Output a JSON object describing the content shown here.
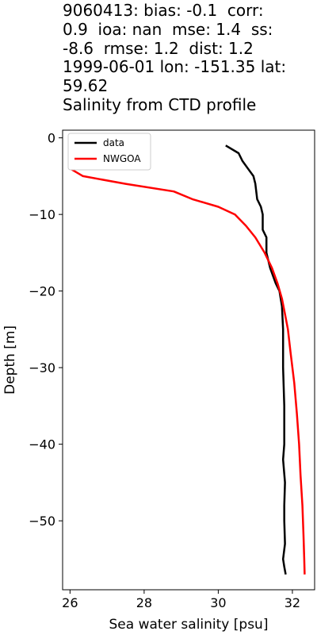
{
  "chart_data": {
    "type": "line",
    "title_lines": [
      "9060413: bias: -0.1  corr:",
      "0.9  ioa: nan  mse: 1.4  ss:",
      "-8.6  rmse: 1.2  dist: 1.2",
      "1999-06-01 lon: -151.35 lat:",
      "59.62",
      "Salinity from CTD profile"
    ],
    "xlabel": "Sea water salinity [psu]",
    "ylabel": "Depth [m]",
    "xlim": [
      25.8,
      32.6
    ],
    "ylim": [
      -59,
      1
    ],
    "xticks": [
      26,
      28,
      30,
      32
    ],
    "yticks": [
      0,
      -10,
      -20,
      -30,
      -40,
      -50
    ],
    "grid": false,
    "legend_position": "top-left",
    "series": [
      {
        "name": "data",
        "color": "#000000",
        "points": [
          [
            30.2,
            -1
          ],
          [
            30.55,
            -2
          ],
          [
            30.65,
            -3
          ],
          [
            30.8,
            -4
          ],
          [
            30.95,
            -5
          ],
          [
            31.0,
            -6
          ],
          [
            31.05,
            -8
          ],
          [
            31.15,
            -9
          ],
          [
            31.2,
            -10
          ],
          [
            31.2,
            -12
          ],
          [
            31.3,
            -13
          ],
          [
            31.3,
            -15
          ],
          [
            31.4,
            -17
          ],
          [
            31.55,
            -19
          ],
          [
            31.65,
            -20
          ],
          [
            31.72,
            -22
          ],
          [
            31.75,
            -25
          ],
          [
            31.75,
            -30
          ],
          [
            31.78,
            -35
          ],
          [
            31.78,
            -40
          ],
          [
            31.75,
            -42
          ],
          [
            31.8,
            -45
          ],
          [
            31.78,
            -48
          ],
          [
            31.78,
            -50
          ],
          [
            31.8,
            -53
          ],
          [
            31.75,
            -55
          ],
          [
            31.78,
            -56
          ],
          [
            31.82,
            -57
          ]
        ]
      },
      {
        "name": "NWGOA",
        "color": "#ff0000",
        "points": [
          [
            26.0,
            -4
          ],
          [
            26.35,
            -5
          ],
          [
            27.5,
            -6
          ],
          [
            28.8,
            -7
          ],
          [
            29.3,
            -8
          ],
          [
            30.0,
            -9
          ],
          [
            30.45,
            -10
          ],
          [
            30.75,
            -11.5
          ],
          [
            31.0,
            -13
          ],
          [
            31.25,
            -15
          ],
          [
            31.45,
            -17
          ],
          [
            31.6,
            -19
          ],
          [
            31.72,
            -21
          ],
          [
            31.8,
            -23
          ],
          [
            31.88,
            -25
          ],
          [
            31.95,
            -28
          ],
          [
            32.05,
            -32
          ],
          [
            32.12,
            -36
          ],
          [
            32.18,
            -40
          ],
          [
            32.22,
            -44
          ],
          [
            32.27,
            -48
          ],
          [
            32.3,
            -52
          ],
          [
            32.32,
            -55
          ],
          [
            32.33,
            -57
          ]
        ]
      }
    ]
  }
}
